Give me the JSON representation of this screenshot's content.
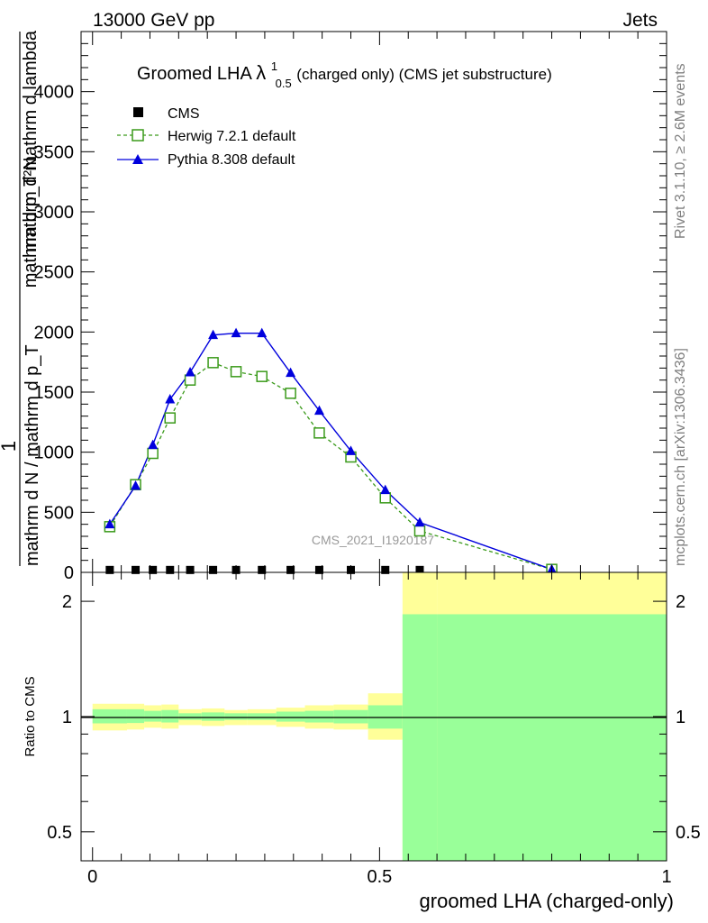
{
  "header": {
    "left": "13000 GeV pp",
    "right": "Jets"
  },
  "side_text": {
    "rivet": "Rivet 3.1.10, ≥ 2.6M events",
    "mcplots": "mcplots.cern.ch [arXiv:1306.3436]"
  },
  "watermark": "CMS_2021_I1920187",
  "title": {
    "prefix": "Groomed LHA ",
    "lambda": "λ",
    "sup": "1",
    "sub": "0.5",
    "suffix": " (charged only) (CMS jet substructure)"
  },
  "legend": {
    "cms": "CMS",
    "herwig": "Herwig 7.2.1 default",
    "pythia": "Pythia 8.308 default"
  },
  "ylabel_top": {
    "line1": "mathrm d²N",
    "line2": "mathrm d p_T mathrm d lambda",
    "frac_num": "1",
    "frac_den": "mathrm d N / mathrm d p_T"
  },
  "ylabel_bottom": "Ratio to CMS",
  "xlabel": "groomed LHA (charged-only)",
  "colors": {
    "herwig": "#3a9a1a",
    "pythia": "#0000dd",
    "cms": "#000000",
    "band_outer": "#ffff99",
    "band_inner": "#99ff99",
    "text_gray": "#7f7f7f"
  },
  "chart_data": [
    {
      "type": "line",
      "panel": "main",
      "xlim": [
        -0.02,
        1.0
      ],
      "ylim": [
        0,
        4500
      ],
      "yticks": [
        0,
        500,
        1000,
        1500,
        2000,
        2500,
        3000,
        3500,
        4000
      ],
      "ytick_labels": [
        "0",
        "500",
        "1000",
        "1500",
        "2000",
        "2500",
        "3000",
        "3500",
        "4000"
      ],
      "legend_position": "top-left",
      "series": [
        {
          "name": "CMS",
          "marker": "filled-square",
          "x": [
            0.03,
            0.075,
            0.105,
            0.135,
            0.17,
            0.21,
            0.25,
            0.295,
            0.345,
            0.395,
            0.45,
            0.51,
            0.57
          ],
          "y": [
            5,
            5,
            5,
            5,
            5,
            5,
            5,
            5,
            5,
            5,
            5,
            5,
            5
          ]
        },
        {
          "name": "Herwig 7.2.1 default",
          "marker": "open-square",
          "line": "dashed",
          "x": [
            0.03,
            0.075,
            0.105,
            0.135,
            0.17,
            0.21,
            0.25,
            0.295,
            0.345,
            0.395,
            0.45,
            0.51,
            0.57,
            0.8
          ],
          "y": [
            380,
            730,
            990,
            1285,
            1600,
            1745,
            1670,
            1630,
            1490,
            1160,
            960,
            620,
            345,
            25
          ]
        },
        {
          "name": "Pythia 8.308 default",
          "marker": "filled-triangle",
          "line": "solid",
          "x": [
            0.03,
            0.075,
            0.105,
            0.135,
            0.17,
            0.21,
            0.25,
            0.295,
            0.345,
            0.395,
            0.45,
            0.51,
            0.57,
            0.8
          ],
          "y": [
            400,
            720,
            1060,
            1440,
            1665,
            1975,
            1990,
            1990,
            1660,
            1345,
            1010,
            685,
            415,
            25
          ],
          "yerr": [
            10,
            15,
            25,
            25,
            25,
            30,
            30,
            30,
            25,
            20,
            20,
            15,
            10,
            5
          ]
        }
      ]
    },
    {
      "type": "area",
      "panel": "ratio",
      "scale": "log",
      "xlim": [
        -0.02,
        1.0
      ],
      "ylim": [
        0.42,
        2.38
      ],
      "reference": 1,
      "yticks": [
        0.5,
        1,
        2
      ],
      "ytick_labels": [
        "0.5",
        "1",
        "2"
      ],
      "xticks": [
        0,
        0.5,
        1
      ],
      "xtick_labels": [
        "0",
        "0.5",
        "1"
      ],
      "bands": {
        "edges": [
          0.0,
          0.06,
          0.09,
          0.12,
          0.15,
          0.19,
          0.23,
          0.27,
          0.32,
          0.37,
          0.42,
          0.48,
          0.54,
          0.6,
          1.0
        ],
        "outer_lo": [
          0.92,
          0.925,
          0.935,
          0.93,
          0.95,
          0.945,
          0.95,
          0.95,
          0.94,
          0.93,
          0.925,
          0.87,
          0.4,
          0.4
        ],
        "outer_hi": [
          1.08,
          1.08,
          1.07,
          1.075,
          1.045,
          1.05,
          1.04,
          1.045,
          1.055,
          1.07,
          1.075,
          1.15,
          2.4,
          2.4
        ],
        "inner_lo": [
          0.96,
          0.962,
          0.97,
          0.965,
          0.98,
          0.975,
          0.98,
          0.98,
          0.97,
          0.965,
          0.96,
          0.93,
          0.4,
          0.4
        ],
        "inner_hi": [
          1.045,
          1.045,
          1.035,
          1.04,
          1.02,
          1.025,
          1.02,
          1.02,
          1.03,
          1.035,
          1.04,
          1.07,
          1.85,
          1.85
        ]
      }
    }
  ]
}
